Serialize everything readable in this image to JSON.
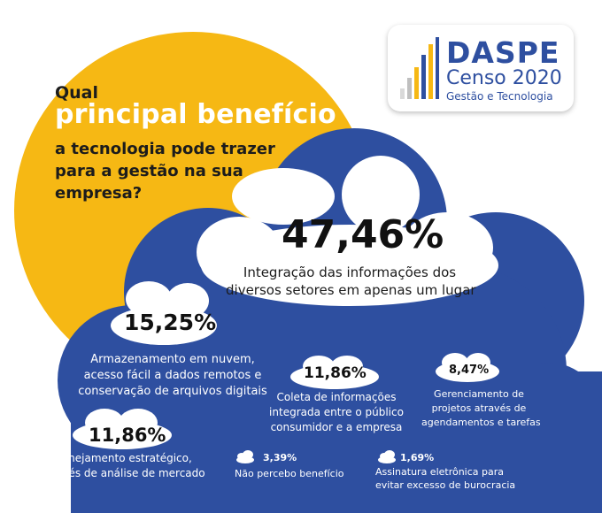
{
  "question": {
    "line1": "Qual",
    "line2": "principal benefício",
    "line3": "a tecnologia pode trazer",
    "line4": "para a gestão na sua",
    "line5": "empresa?"
  },
  "logo": {
    "name": "DASPE",
    "subtitle": "Censo 2020",
    "tagline": "Gestão e Tecnologia"
  },
  "colors": {
    "yellow": "#f6b814",
    "blue": "#2e4fa0",
    "white": "#ffffff"
  },
  "chart_data": {
    "type": "bar",
    "categories": [
      "Integração das informações dos diversos setores em apenas um lugar",
      "Armazenamento em nuvem, acesso fácil a dados remotos e conservação de arquivos digitais",
      "Coleta de informações integrada entre o público consumidor e a empresa",
      "Planejamento estratégico, através de análise de mercado",
      "Gerenciamento de projetos através de agendamentos e tarefas",
      "Não percebo benefício",
      "Assinatura eletrônica para evitar excesso de burocracia"
    ],
    "values": [
      47.46,
      15.25,
      11.86,
      11.86,
      8.47,
      3.39,
      1.69
    ],
    "value_labels": [
      "47,46%",
      "15,25%",
      "11,86%",
      "11,86%",
      "8,47%",
      "3,39%",
      "1,69%"
    ],
    "label_lines": [
      [
        "Integração das informações dos",
        "diversos setores em apenas um lugar"
      ],
      [
        "Armazenamento em nuvem,",
        "acesso fácil a dados remotos e",
        "conservação de arquivos digitais"
      ],
      [
        "Coleta de informações",
        "integrada entre o público",
        "consumidor e a empresa"
      ],
      [
        "Planejamento estratégico,",
        "através de análise de mercado"
      ],
      [
        "Gerenciamento de",
        "projetos através de",
        "agendamentos e tarefas"
      ],
      [
        "Não percebo benefício"
      ],
      [
        "Assinatura eletrônica para",
        "evitar excesso de burocracia"
      ]
    ]
  }
}
